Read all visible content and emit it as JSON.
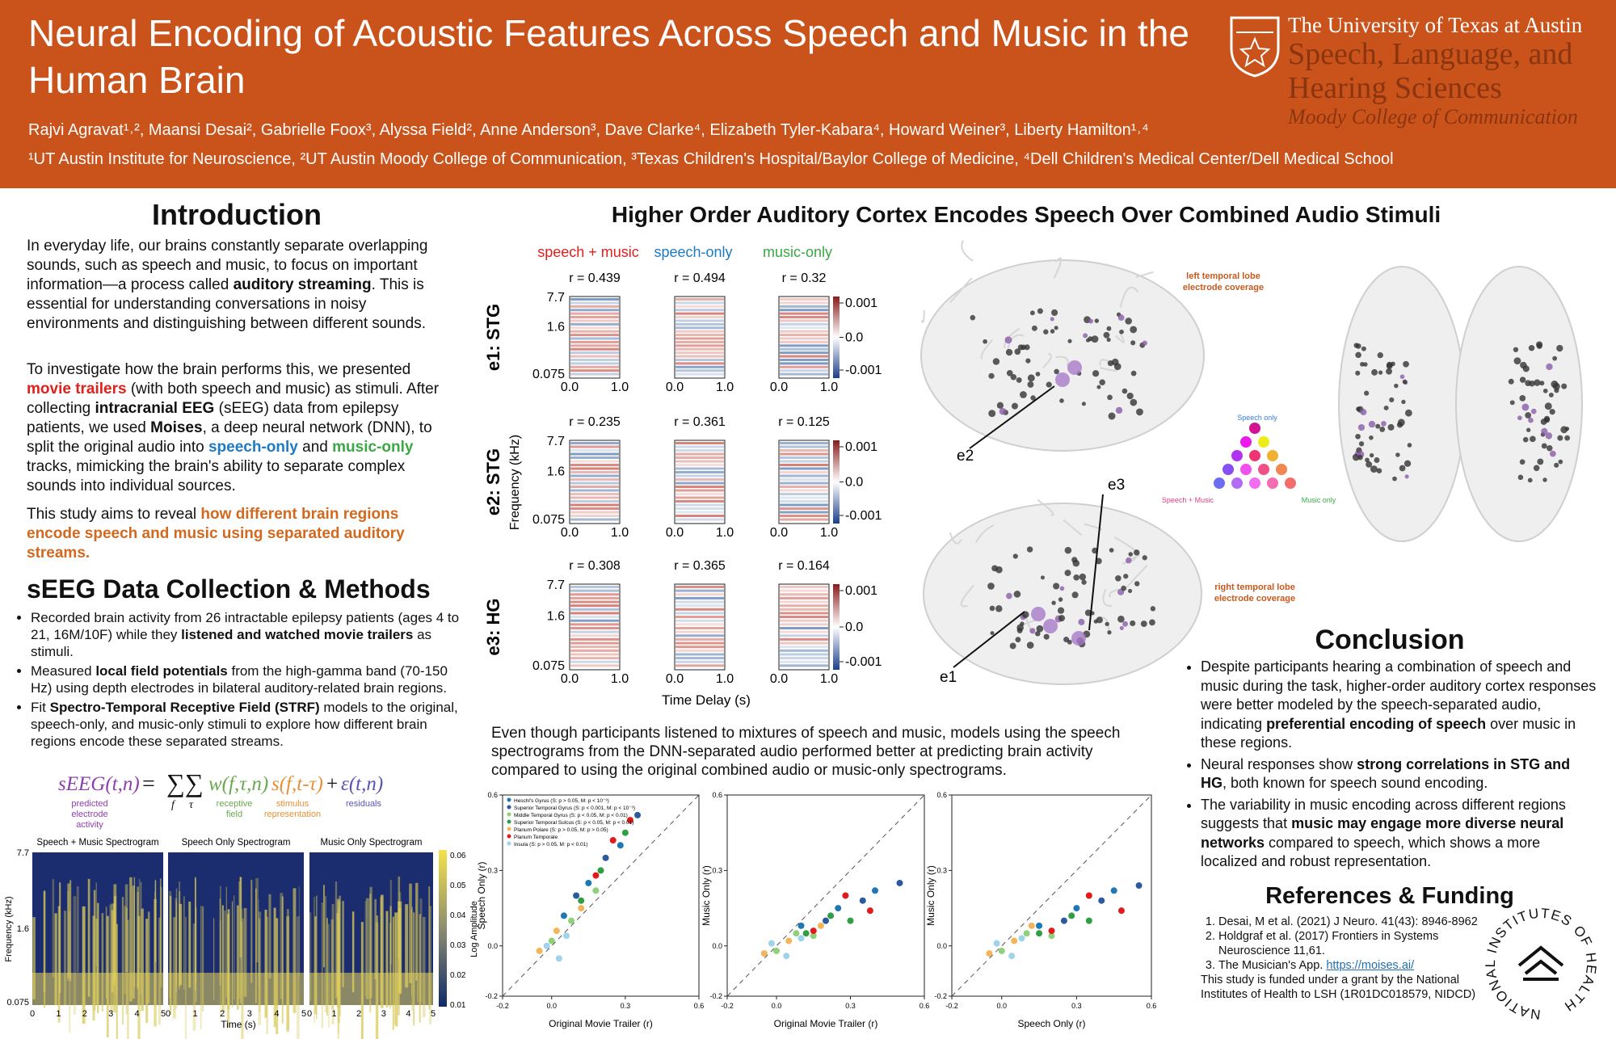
{
  "header": {
    "title": "Neural Encoding of Acoustic Features Across Speech and Music in the Human Brain",
    "authors": "Rajvi Agravat¹˒², Maansi Desai², Gabrielle Foox³, Alyssa Field², Anne Anderson³, Dave Clarke⁴, Elizabeth Tyler-Kabara⁴, Howard Weiner³, Liberty Hamilton¹˒⁴",
    "affiliations": "¹UT Austin Institute for Neuroscience, ²UT Austin Moody College of Communication, ³Texas Children's Hospital/Baylor College of Medicine, ⁴Dell Children's Medical Center/Dell Medical School",
    "university": "The University of Texas at Austin",
    "department": [
      "Speech, Language, and",
      "Hearing Sciences"
    ],
    "college": "Moody College of Communication"
  },
  "intro": {
    "heading": "Introduction",
    "paragraphs": [
      [
        "In everyday life, our brains constantly separate overlapping sounds, such as speech and music, to focus on important information—a process called ",
        "auditory streaming",
        ". This is essential for understanding conversations in noisy environments and distinguishing between different sounds."
      ],
      [
        "To investigate how the brain performs this, we presented ",
        "movie trailers",
        " (with both speech and music) as stimuli. After collecting ",
        "intracranial EEG",
        " (sEEG) data from epilepsy patients, we used ",
        "Moises",
        ", a deep neural network (DNN), to split the original audio into ",
        "speech-only",
        " and ",
        "music-only",
        " tracks, mimicking the brain's ability to separate complex sounds into individual sources."
      ],
      [
        "This study aims to reveal ",
        "how different brain regions encode speech and music using separated auditory streams."
      ]
    ]
  },
  "methods": {
    "heading": "sEEG Data Collection & Methods",
    "bullets": [
      [
        "Recorded brain activity from 26 intractable epilepsy patients (ages 4 to 21, 16M/10F) while they ",
        "listened and watched movie trailers",
        " as stimuli."
      ],
      [
        "Measured ",
        "local field potentials",
        " from the high-gamma band (70-150 Hz) using depth electrodes in bilateral auditory-related brain regions."
      ],
      [
        "Fit ",
        "Spectro-Temporal Receptive Field (STRF)",
        " models to the original, speech-only, and music-only stimuli to explore how different brain regions encode these separated streams."
      ]
    ],
    "equation": {
      "lhs": "sEEG(t,n)",
      "equals": "=",
      "sums": "∑∑",
      "sub_f": "f",
      "sub_tau": "τ",
      "w": "w(f,τ,n)",
      "s": "s(f,t-τ)",
      "plus": "+",
      "eps": "ε(t,n)",
      "labels": [
        "predicted electrode activity",
        "receptive field",
        "stimulus representation",
        "residuals"
      ]
    }
  },
  "spectrogram_figure": {
    "titles": [
      "Speech + Music Spectrogram",
      "Speech Only Spectrogram",
      "Music Only Spectrogram"
    ],
    "y_ticks": [
      "7.7",
      "1.6",
      "0.075"
    ],
    "x_ticks": [
      "0",
      "1",
      "2",
      "3",
      "4",
      "5"
    ],
    "y_label": "Frequency (kHz)",
    "x_label": "Time (s)",
    "colorbar_ticks": [
      "0.06",
      "0.05",
      "0.04",
      "0.03",
      "0.02",
      "0.01"
    ],
    "colorbar_label": "Log Amplitude"
  },
  "results": {
    "heading": "Higher Order Auditory Cortex Encodes Speech Over Combined Audio Stimuli",
    "paragraph": "Even though participants listened to mixtures of speech and music, models using the speech spectrograms from the DNN-separated audio performed better at predicting brain activity compared to using the original combined audio or music-only spectrograms."
  },
  "strf_figure": {
    "columns": [
      "speech + music",
      "speech-only",
      "music-only"
    ],
    "rows": [
      {
        "label": "e1: STG",
        "r": [
          "r = 0.439",
          "r = 0.494",
          "r = 0.32"
        ]
      },
      {
        "label": "e2: STG",
        "r": [
          "r = 0.235",
          "r = 0.361",
          "r = 0.125"
        ]
      },
      {
        "label": "e3: HG",
        "r": [
          "r = 0.308",
          "r = 0.365",
          "r = 0.164"
        ]
      }
    ],
    "y_ticks": [
      "7.7",
      "1.6",
      "0.075"
    ],
    "x_ticks": [
      "0.0",
      "1.0"
    ],
    "colorbar_ticks": [
      "0.001",
      "0.0",
      "-0.001"
    ],
    "y_label": "Frequency (kHz)",
    "x_label": "Time Delay (s)"
  },
  "brain_figure": {
    "left_label": [
      "left temporal lobe",
      "electrode coverage"
    ],
    "right_label": [
      "right temporal lobe",
      "electrode coverage"
    ],
    "electrodes": [
      "e1",
      "e2",
      "e3"
    ],
    "legend": {
      "speech": "Speech only",
      "both": "Speech + Music",
      "music": "Music only"
    }
  },
  "scatter_figure": {
    "lim": [
      -0.2,
      0.6
    ],
    "ticks": [
      -0.2,
      {
        "value": 0,
        "label": "0.0"
      },
      0.3,
      0.6
    ],
    "legend": [
      {
        "name": "Heschl's Gyrus (S: p > 0.05, M: p < 10⁻³)",
        "color": "#1f78b4"
      },
      {
        "name": "Superior Temporal Gyrus (S: p < 0.001, M: p < 10⁻³)",
        "color": "#2c5aa0"
      },
      {
        "name": "Middle Temporal Gyrus (S: p < 0.05, M: p < 0.01)",
        "color": "#8fd17a"
      },
      {
        "name": "Superior Temporal Sulcus (S: p < 0.05, M: p < 0.01)",
        "color": "#2f9e44"
      },
      {
        "name": "Planum Polare (S: p > 0.05, M: p > 0.05)",
        "color": "#f2b55a"
      },
      {
        "name": "Planum Temporale",
        "color": "#e31a1c"
      },
      {
        "name": "Insula (S: p > 0.05, M: p < 0.01)",
        "color": "#9fd3ec"
      }
    ],
    "plots": [
      {
        "x_label": "Original Movie Trailer (r)",
        "y_label": "Speech Only (r)",
        "series": [
          {
            "x": [
              0.05,
              0.15,
              0.28
            ],
            "y": [
              0.12,
              0.25,
              0.4
            ]
          },
          {
            "x": [
              0.1,
              0.22,
              0.35
            ],
            "y": [
              0.2,
              0.35,
              0.52
            ]
          },
          {
            "x": [
              0.0,
              0.08,
              0.18
            ],
            "y": [
              0.02,
              0.1,
              0.22
            ]
          },
          {
            "x": [
              0.12,
              0.2,
              0.3
            ],
            "y": [
              0.18,
              0.3,
              0.45
            ]
          },
          {
            "x": [
              -0.05,
              0.02,
              0.12
            ],
            "y": [
              -0.02,
              0.06,
              0.15
            ]
          },
          {
            "x": [
              0.25,
              0.18,
              0.32
            ],
            "y": [
              0.42,
              0.28,
              0.5
            ]
          },
          {
            "x": [
              -0.02,
              0.06,
              0.03
            ],
            "y": [
              0.0,
              0.04,
              -0.05
            ]
          }
        ]
      },
      {
        "x_label": "Original Movie Trailer (r)",
        "y_label": "Music Only (r)",
        "series": [
          {
            "x": [
              0.1,
              0.25,
              0.4
            ],
            "y": [
              0.08,
              0.15,
              0.22
            ]
          },
          {
            "x": [
              0.2,
              0.35,
              0.5
            ],
            "y": [
              0.1,
              0.18,
              0.25
            ]
          },
          {
            "x": [
              0.0,
              0.08,
              0.15
            ],
            "y": [
              -0.02,
              0.05,
              0.04
            ]
          },
          {
            "x": [
              0.12,
              0.22,
              0.3
            ],
            "y": [
              0.05,
              0.12,
              0.1
            ]
          },
          {
            "x": [
              -0.05,
              0.05,
              0.18
            ],
            "y": [
              -0.03,
              0.02,
              0.08
            ]
          },
          {
            "x": [
              0.28,
              0.15,
              0.38
            ],
            "y": [
              0.2,
              0.06,
              0.14
            ]
          },
          {
            "x": [
              -0.02,
              0.04,
              0.1
            ],
            "y": [
              0.01,
              -0.04,
              0.03
            ]
          }
        ]
      },
      {
        "x_label": "Speech Only (r)",
        "y_label": "Music Only (r)",
        "series": [
          {
            "x": [
              0.15,
              0.3,
              0.45
            ],
            "y": [
              0.08,
              0.15,
              0.22
            ]
          },
          {
            "x": [
              0.25,
              0.4,
              0.55
            ],
            "y": [
              0.1,
              0.18,
              0.24
            ]
          },
          {
            "x": [
              0.0,
              0.1,
              0.2
            ],
            "y": [
              -0.02,
              0.05,
              0.04
            ]
          },
          {
            "x": [
              0.15,
              0.28,
              0.35
            ],
            "y": [
              0.05,
              0.12,
              0.1
            ]
          },
          {
            "x": [
              -0.05,
              0.05,
              0.12
            ],
            "y": [
              -0.03,
              0.02,
              0.08
            ]
          },
          {
            "x": [
              0.35,
              0.2,
              0.48
            ],
            "y": [
              0.2,
              0.06,
              0.14
            ]
          },
          {
            "x": [
              -0.02,
              0.04,
              0.08
            ],
            "y": [
              0.01,
              -0.04,
              0.03
            ]
          }
        ]
      }
    ]
  },
  "conclusion": {
    "heading": "Conclusion",
    "bullets": [
      [
        "Despite participants hearing a combination of speech and music during the task, higher-order auditory cortex responses were better modeled by the speech-separated audio, indicating ",
        "preferential encoding of speech",
        " over music in these regions."
      ],
      [
        "Neural responses show ",
        "strong correlations in STG and HG",
        ", both known for speech sound encoding."
      ],
      [
        "The variability in music encoding across different regions suggests that ",
        "music may engage more diverse neural networks",
        " compared to speech, which shows a more localized and robust representation."
      ]
    ]
  },
  "references": {
    "heading": "References & Funding",
    "items": [
      [
        "Desai, M et al. (2021) J Neuro. 41(43): 8946-8962"
      ],
      [
        "Holdgraf et al. (2017) Frontiers in Systems Neuroscience 11,61."
      ],
      [
        "The Musician's App. ",
        "https://moises.ai/"
      ]
    ],
    "funding": "This study is funded under a grant by the National Institutes of Health to LSH (1R01DC018579, NIDCD)",
    "nih_logo": "NATIONAL INSTITUTES OF HEALTH"
  }
}
